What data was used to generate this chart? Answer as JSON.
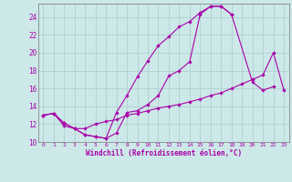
{
  "bg_color": "#cce8e8",
  "grid_color": "#aacccc",
  "line_color": "#aa00aa",
  "xlabel": "Windchill (Refroidissement éolien,°C)",
  "xlim": [
    -0.5,
    23.5
  ],
  "ylim": [
    10,
    25.5
  ],
  "xticks": [
    0,
    1,
    2,
    3,
    4,
    5,
    6,
    7,
    8,
    9,
    10,
    11,
    12,
    13,
    14,
    15,
    16,
    17,
    18,
    19,
    20,
    21,
    22,
    23
  ],
  "yticks": [
    10,
    12,
    14,
    16,
    18,
    20,
    22,
    24
  ],
  "line1_x": [
    0,
    1,
    2,
    3,
    4,
    5,
    6,
    7,
    8,
    9,
    10,
    11,
    12,
    13,
    14,
    15,
    16,
    17,
    18,
    20,
    21,
    22
  ],
  "line1_y": [
    13.0,
    13.2,
    12.1,
    11.5,
    10.8,
    10.6,
    10.4,
    11.0,
    13.3,
    13.5,
    14.2,
    15.2,
    17.4,
    18.0,
    19.0,
    24.3,
    25.2,
    25.2,
    24.3,
    16.7,
    15.8,
    16.2
  ],
  "line2_x": [
    0,
    1,
    2,
    3,
    4,
    5,
    6,
    7,
    8,
    9,
    10,
    11,
    12,
    13,
    14,
    15,
    16,
    17,
    18
  ],
  "line2_y": [
    13.0,
    13.2,
    12.1,
    11.5,
    10.8,
    10.6,
    10.4,
    13.3,
    15.2,
    17.3,
    19.1,
    20.8,
    21.8,
    22.9,
    23.5,
    24.5,
    25.2,
    25.2,
    24.3
  ],
  "line3_x": [
    0,
    1,
    2,
    3,
    4,
    5,
    6,
    7,
    8,
    9,
    10,
    11,
    12,
    13,
    14,
    15,
    16,
    17,
    18,
    19,
    20,
    21,
    22,
    23
  ],
  "line3_y": [
    13.0,
    13.2,
    11.8,
    11.5,
    11.5,
    12.0,
    12.3,
    12.5,
    13.0,
    13.2,
    13.5,
    13.8,
    14.0,
    14.2,
    14.5,
    14.8,
    15.2,
    15.5,
    16.0,
    16.5,
    17.0,
    17.5,
    20.0,
    15.8
  ]
}
